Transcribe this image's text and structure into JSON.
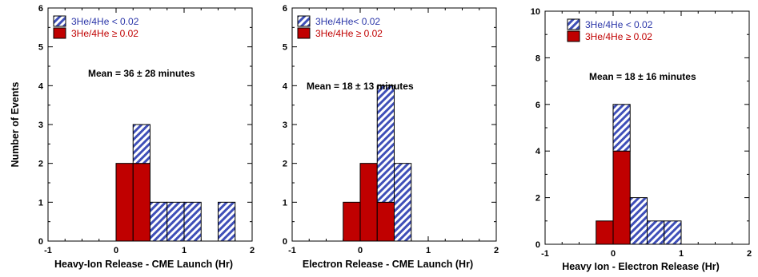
{
  "y_axis_label": "Number of Events",
  "colors": {
    "low_ratio_stripe": "#3f4fb8",
    "low_ratio_text": "#2a35a8",
    "high_ratio_fill": "#c00000",
    "high_ratio_text": "#c00000",
    "frame": "#000000"
  },
  "chart_data": [
    {
      "type": "bar",
      "stacked": true,
      "bin_width": 0.25,
      "bin_starts": [
        0,
        0.25,
        0.5,
        0.75,
        1.0,
        1.5
      ],
      "series": [
        {
          "name": "3He/4He ≥ 0.02",
          "values": [
            2,
            2,
            0,
            0,
            0,
            0
          ]
        },
        {
          "name": "3He/4He < 0.02",
          "values": [
            0,
            1,
            1,
            1,
            1,
            1
          ]
        }
      ],
      "xlabel": "Heavy-Ion Release - CME Launch (Hr)",
      "ylabel": "Number of Events",
      "xlim": [
        -1,
        2
      ],
      "ylim": [
        0,
        6
      ],
      "xticks": [
        "-1",
        "0",
        "1",
        "2"
      ],
      "yticks": [
        "0",
        "1",
        "2",
        "3",
        "4",
        "5",
        "6"
      ],
      "annotation": "Mean = 36 ± 28 minutes",
      "legend_position": "top-left"
    },
    {
      "type": "bar",
      "stacked": true,
      "bin_width": 0.25,
      "bin_starts": [
        -0.25,
        0,
        0.25,
        0.5
      ],
      "series": [
        {
          "name": "3He/4He ≥ 0.02",
          "values": [
            1,
            2,
            1,
            0
          ]
        },
        {
          "name": "3He/4He< 0.02",
          "values": [
            0,
            0,
            3,
            2
          ]
        }
      ],
      "xlabel": "Electron Release - CME Launch (Hr)",
      "ylabel": "",
      "xlim": [
        -1,
        2
      ],
      "ylim": [
        0,
        6
      ],
      "xticks": [
        "-1",
        "0",
        "1",
        "2"
      ],
      "yticks": [
        "0",
        "1",
        "2",
        "3",
        "4",
        "5",
        "6"
      ],
      "annotation": "Mean = 18 ± 13 minutes",
      "legend_position": "top-left"
    },
    {
      "type": "bar",
      "stacked": true,
      "bin_width": 0.25,
      "bin_starts": [
        -0.25,
        0,
        0.25,
        0.5,
        0.75
      ],
      "series": [
        {
          "name": "3He/4He ≥ 0.02",
          "values": [
            1,
            4,
            0,
            0,
            0
          ]
        },
        {
          "name": "3He/4He < 0.02",
          "values": [
            0,
            2,
            2,
            1,
            1
          ]
        }
      ],
      "xlabel": "Heavy Ion - Electron Release (Hr)",
      "ylabel": "",
      "xlim": [
        -1,
        2
      ],
      "ylim": [
        0,
        10
      ],
      "xticks": [
        "-1",
        "0",
        "1",
        "2"
      ],
      "yticks": [
        "0",
        "2",
        "4",
        "6",
        "8",
        "10"
      ],
      "annotation": "Mean = 18 ± 16 minutes",
      "legend_position": "top-left"
    }
  ]
}
